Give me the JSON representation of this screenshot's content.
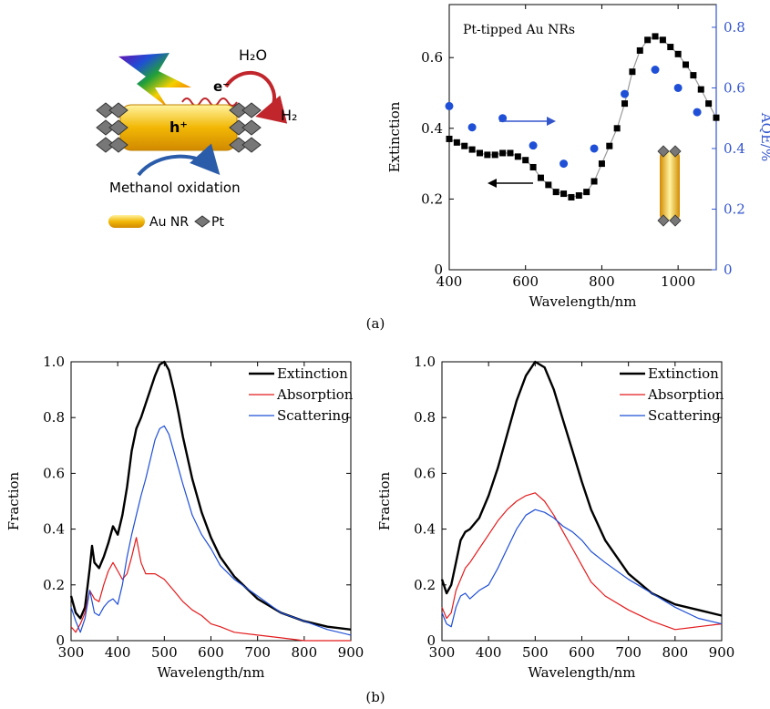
{
  "panel_labels": {
    "a": "(a)",
    "b": "(b)"
  },
  "schematic": {
    "h2o": "H₂O",
    "electron": "e⁻",
    "h2": "H₂",
    "hole": "h⁺",
    "oxidation": "Methanol oxidation",
    "legend_au": "Au NR",
    "legend_pt": "Pt"
  },
  "colors": {
    "black": "#000000",
    "red": "#e41a1c",
    "blue": "#1f4fd6",
    "axis_blue": "#3355cc",
    "gold": "#f2b705"
  },
  "chart_data": [
    {
      "type": "scatter",
      "title": "Pt-tipped Au NRs",
      "xlabel": "Wavelength/nm",
      "ylabel": "Extinction",
      "y2label": "AQE/%",
      "xlim": [
        400,
        1100
      ],
      "ylim": [
        0,
        0.75
      ],
      "y2lim": [
        0,
        0.875
      ],
      "xticks": [
        400,
        600,
        800,
        1000
      ],
      "yticks": [
        0,
        0.2,
        0.4,
        0.6
      ],
      "y2ticks": [
        0,
        0.2,
        0.4,
        0.6,
        0.8
      ],
      "xtick_labels": [
        "400",
        "600",
        "800",
        "1000"
      ],
      "ytick_labels": [
        "0",
        "0.2",
        "0.4",
        "0.6"
      ],
      "y2tick_labels": [
        "0",
        "0.2",
        "0.4",
        "0.6",
        "0.8"
      ],
      "series": [
        {
          "axis": "left",
          "marker": "square",
          "color": "#000000",
          "x": [
            400,
            420,
            440,
            460,
            480,
            500,
            520,
            540,
            560,
            580,
            600,
            620,
            640,
            660,
            680,
            700,
            720,
            740,
            760,
            780,
            800,
            820,
            840,
            860,
            880,
            900,
            920,
            940,
            960,
            980,
            1000,
            1020,
            1040,
            1060,
            1080,
            1100
          ],
          "y": [
            0.37,
            0.36,
            0.35,
            0.34,
            0.33,
            0.325,
            0.325,
            0.33,
            0.33,
            0.32,
            0.31,
            0.29,
            0.26,
            0.24,
            0.22,
            0.215,
            0.205,
            0.21,
            0.22,
            0.25,
            0.3,
            0.35,
            0.4,
            0.47,
            0.56,
            0.62,
            0.65,
            0.66,
            0.65,
            0.63,
            0.61,
            0.58,
            0.55,
            0.51,
            0.47,
            0.43
          ]
        },
        {
          "axis": "right",
          "marker": "circle",
          "color": "#1f4fd6",
          "x": [
            400,
            460,
            540,
            620,
            700,
            780,
            860,
            940,
            1000,
            1050
          ],
          "y": [
            0.54,
            0.47,
            0.5,
            0.41,
            0.35,
            0.4,
            0.58,
            0.66,
            0.6,
            0.52
          ]
        }
      ]
    },
    {
      "type": "line",
      "xlabel": "Wavelength/nm",
      "ylabel": "Fraction",
      "xlim": [
        300,
        900
      ],
      "ylim": [
        0,
        1.0
      ],
      "xticks": [
        300,
        400,
        500,
        600,
        700,
        800,
        900
      ],
      "yticks": [
        0,
        0.2,
        0.4,
        0.6,
        0.8,
        1.0
      ],
      "xtick_labels": [
        "300",
        "400",
        "500",
        "600",
        "700",
        "800",
        "900"
      ],
      "ytick_labels": [
        "0",
        "0.2",
        "0.4",
        "0.6",
        "0.8",
        "1.0"
      ],
      "legend": "top-right",
      "series": [
        {
          "name": "Extinction",
          "color": "#000000",
          "width": 2.4,
          "x": [
            300,
            310,
            320,
            330,
            340,
            345,
            350,
            360,
            370,
            380,
            390,
            400,
            410,
            420,
            430,
            440,
            450,
            460,
            470,
            480,
            490,
            500,
            510,
            520,
            530,
            540,
            560,
            580,
            600,
            620,
            650,
            700,
            750,
            800,
            850,
            900
          ],
          "y": [
            0.16,
            0.1,
            0.08,
            0.12,
            0.26,
            0.34,
            0.28,
            0.26,
            0.3,
            0.35,
            0.41,
            0.38,
            0.45,
            0.55,
            0.68,
            0.76,
            0.8,
            0.85,
            0.9,
            0.95,
            0.99,
            1.0,
            0.97,
            0.9,
            0.82,
            0.73,
            0.58,
            0.46,
            0.37,
            0.3,
            0.23,
            0.15,
            0.1,
            0.07,
            0.05,
            0.04
          ]
        },
        {
          "name": "Absorption",
          "color": "#e41a1c",
          "width": 1.2,
          "x": [
            300,
            310,
            320,
            330,
            340,
            350,
            360,
            370,
            380,
            390,
            400,
            410,
            420,
            430,
            440,
            450,
            460,
            480,
            500,
            520,
            540,
            560,
            580,
            600,
            620,
            650,
            700,
            750,
            800,
            850,
            900
          ],
          "y": [
            0.05,
            0.03,
            0.06,
            0.1,
            0.18,
            0.15,
            0.14,
            0.2,
            0.25,
            0.28,
            0.25,
            0.22,
            0.24,
            0.3,
            0.37,
            0.28,
            0.24,
            0.24,
            0.22,
            0.18,
            0.14,
            0.11,
            0.09,
            0.06,
            0.05,
            0.03,
            0.02,
            0.01,
            0.0,
            0.0,
            0.0
          ]
        },
        {
          "name": "Scattering",
          "color": "#1f4fd6",
          "width": 1.2,
          "x": [
            300,
            310,
            320,
            330,
            340,
            350,
            360,
            370,
            380,
            390,
            400,
            410,
            420,
            430,
            440,
            450,
            460,
            470,
            480,
            490,
            500,
            510,
            520,
            530,
            540,
            560,
            580,
            600,
            620,
            650,
            700,
            750,
            800,
            850,
            900
          ],
          "y": [
            0.12,
            0.07,
            0.03,
            0.08,
            0.18,
            0.1,
            0.09,
            0.12,
            0.14,
            0.15,
            0.13,
            0.2,
            0.3,
            0.38,
            0.45,
            0.52,
            0.58,
            0.65,
            0.72,
            0.76,
            0.77,
            0.74,
            0.68,
            0.62,
            0.56,
            0.45,
            0.38,
            0.33,
            0.27,
            0.22,
            0.16,
            0.1,
            0.07,
            0.04,
            0.02
          ]
        }
      ]
    },
    {
      "type": "line",
      "xlabel": "Wavelength/nm",
      "ylabel": "Fraction",
      "xlim": [
        300,
        900
      ],
      "ylim": [
        0,
        1.0
      ],
      "xticks": [
        300,
        400,
        500,
        600,
        700,
        800,
        900
      ],
      "yticks": [
        0,
        0.2,
        0.4,
        0.6,
        0.8,
        1.0
      ],
      "xtick_labels": [
        "300",
        "400",
        "500",
        "600",
        "700",
        "800",
        "900"
      ],
      "ytick_labels": [
        "0",
        "0.2",
        "0.4",
        "0.6",
        "0.8",
        "1.0"
      ],
      "legend": "top-right",
      "series": [
        {
          "name": "Extinction",
          "color": "#000000",
          "width": 2.4,
          "x": [
            300,
            310,
            320,
            330,
            340,
            350,
            360,
            380,
            400,
            420,
            440,
            460,
            480,
            500,
            520,
            540,
            560,
            580,
            600,
            620,
            650,
            700,
            750,
            800,
            850,
            900
          ],
          "y": [
            0.22,
            0.17,
            0.2,
            0.28,
            0.36,
            0.39,
            0.4,
            0.44,
            0.52,
            0.62,
            0.74,
            0.86,
            0.95,
            1.0,
            0.98,
            0.9,
            0.79,
            0.68,
            0.57,
            0.47,
            0.36,
            0.24,
            0.17,
            0.13,
            0.11,
            0.09
          ]
        },
        {
          "name": "Absorption",
          "color": "#e41a1c",
          "width": 1.2,
          "x": [
            300,
            310,
            320,
            330,
            340,
            350,
            360,
            380,
            400,
            420,
            440,
            460,
            480,
            500,
            520,
            540,
            560,
            580,
            600,
            620,
            650,
            700,
            750,
            800,
            850,
            900
          ],
          "y": [
            0.12,
            0.08,
            0.1,
            0.18,
            0.22,
            0.26,
            0.28,
            0.33,
            0.38,
            0.43,
            0.47,
            0.5,
            0.52,
            0.53,
            0.5,
            0.45,
            0.39,
            0.33,
            0.27,
            0.21,
            0.16,
            0.11,
            0.07,
            0.04,
            0.05,
            0.06
          ]
        },
        {
          "name": "Scattering",
          "color": "#1f4fd6",
          "width": 1.2,
          "x": [
            300,
            310,
            320,
            330,
            340,
            350,
            360,
            380,
            400,
            420,
            440,
            460,
            480,
            500,
            520,
            540,
            560,
            580,
            600,
            620,
            650,
            700,
            750,
            800,
            850,
            900
          ],
          "y": [
            0.1,
            0.06,
            0.05,
            0.12,
            0.16,
            0.17,
            0.15,
            0.18,
            0.2,
            0.26,
            0.33,
            0.4,
            0.45,
            0.47,
            0.46,
            0.44,
            0.41,
            0.39,
            0.36,
            0.32,
            0.28,
            0.22,
            0.17,
            0.12,
            0.08,
            0.06
          ]
        }
      ]
    }
  ]
}
